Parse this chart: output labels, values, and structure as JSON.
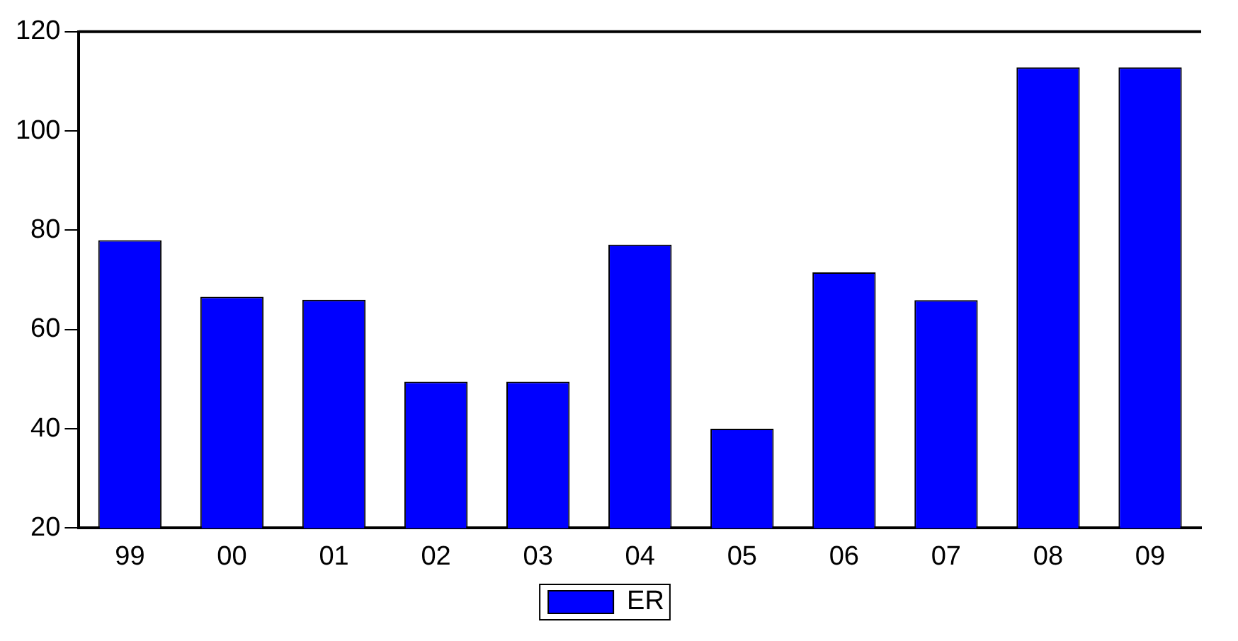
{
  "chart_data": {
    "type": "bar",
    "categories": [
      "99",
      "00",
      "01",
      "02",
      "03",
      "04",
      "05",
      "06",
      "07",
      "08",
      "09"
    ],
    "series": [
      {
        "name": "ER",
        "color": "#0000ff",
        "values": [
          78,
          66.6,
          66,
          49.5,
          49.5,
          77.1,
          40,
          71.5,
          65.9,
          112.8,
          112.8
        ]
      }
    ],
    "ylim": [
      20,
      120
    ],
    "yticks": [
      20,
      40,
      60,
      80,
      100,
      120
    ],
    "grid": false,
    "legend": "bottom"
  }
}
